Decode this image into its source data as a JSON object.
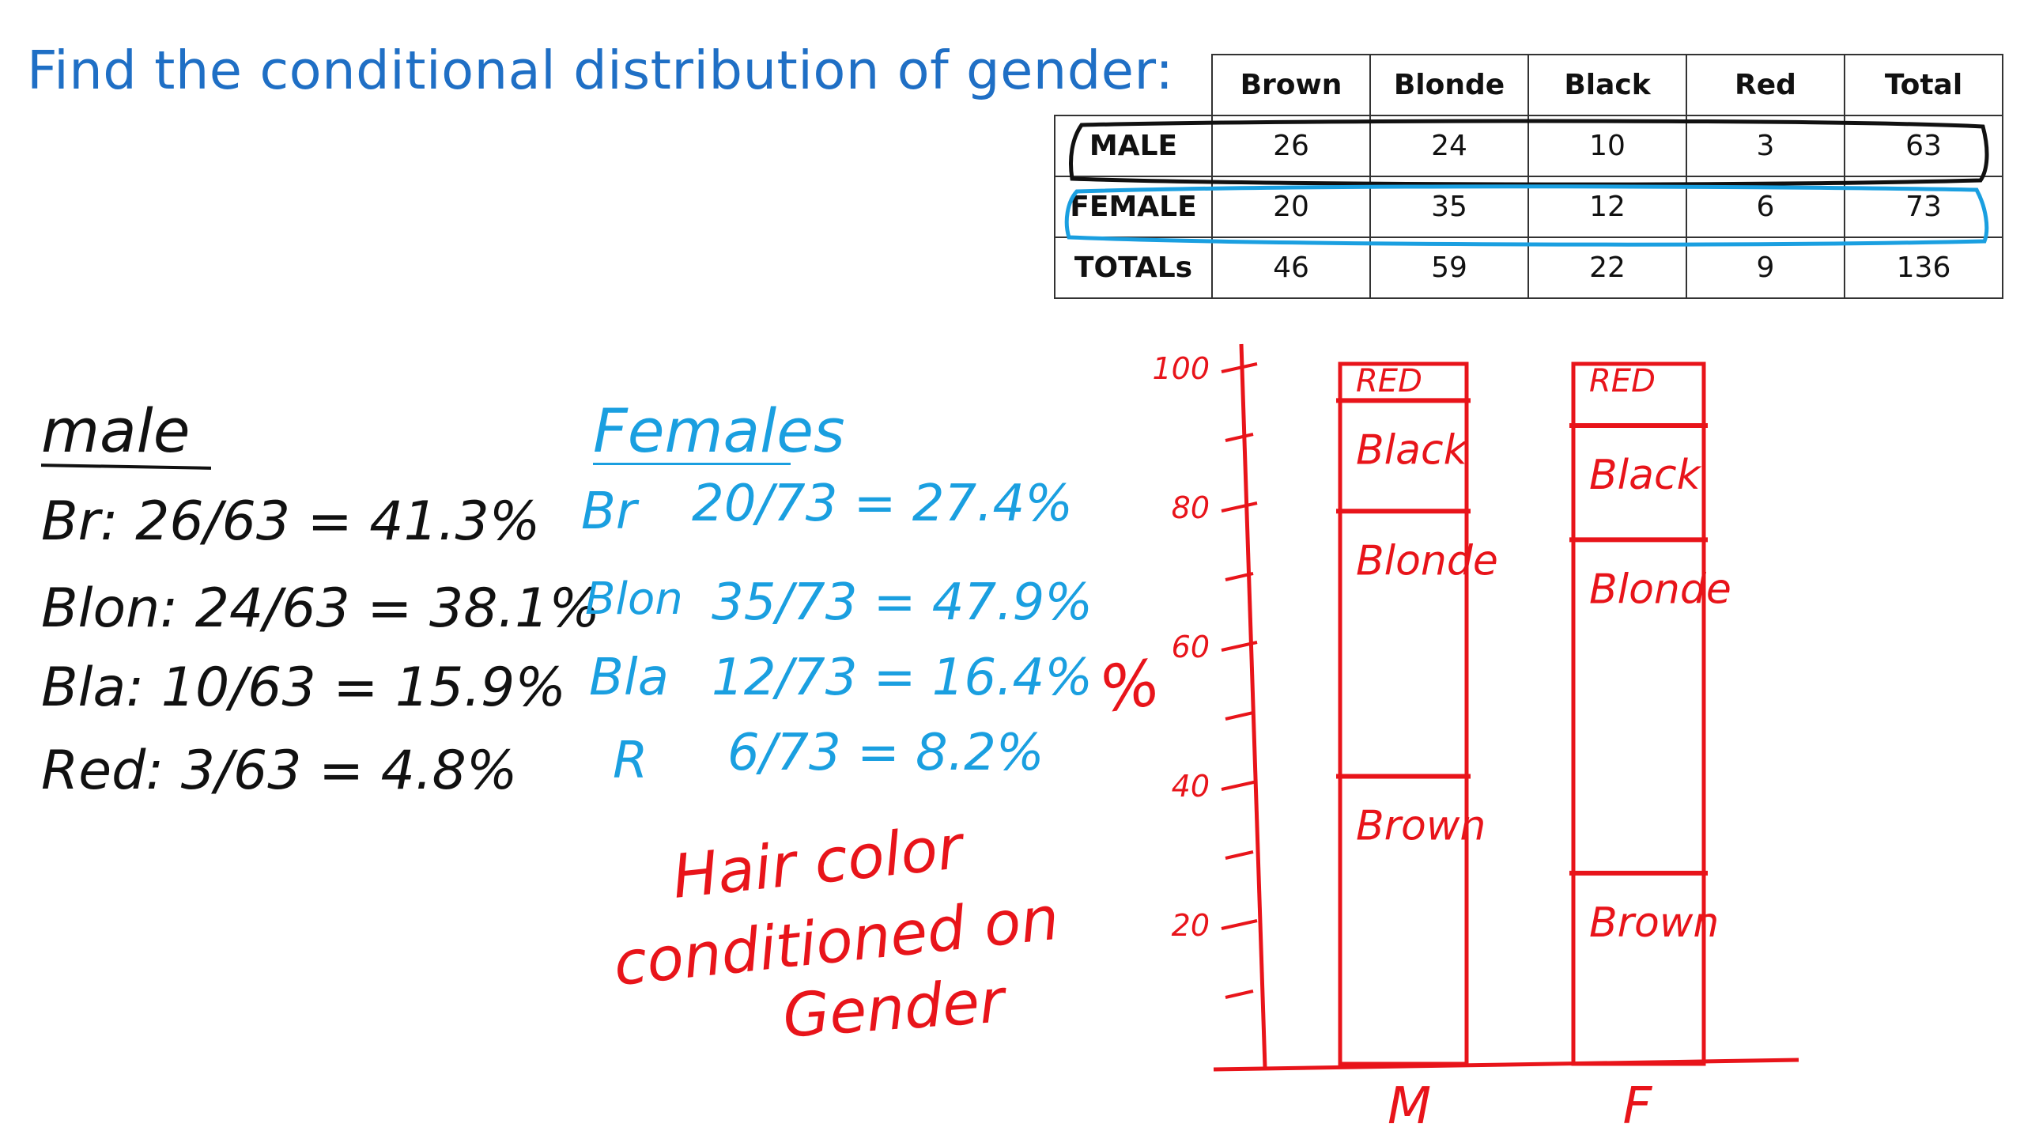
{
  "title": "Find the conditional distribution of gender:",
  "table": {
    "headers": [
      "",
      "Brown",
      "Blonde",
      "Black",
      "Red",
      "Total"
    ],
    "rows": [
      {
        "label": "MALE",
        "values": [
          "26",
          "24",
          "10",
          "3",
          "63"
        ]
      },
      {
        "label": "FEMALE",
        "values": [
          "20",
          "35",
          "12",
          "6",
          "73"
        ]
      },
      {
        "label": "TOTALs",
        "values": [
          "46",
          "59",
          "22",
          "9",
          "136"
        ]
      }
    ],
    "highlight_colors": {
      "male": "#111111",
      "female": "#1a9fe0"
    }
  },
  "male_notes": {
    "heading": "male",
    "lines": [
      "Br: 26/63 = 41.3%",
      "Blon: 24/63 = 38.1%",
      "Bla: 10/63 = 15.9%",
      "Red: 3/63 = 4.8%"
    ]
  },
  "female_notes": {
    "heading": "Females",
    "labels": [
      "Br",
      "Blon",
      "Bla",
      "R"
    ],
    "values": [
      "20/73 = 27.4%",
      "35/73 = 47.9%",
      "12/73 = 16.4%",
      "6/73 = 8.2%"
    ]
  },
  "hair_note": [
    "Hair color",
    "conditioned on",
    "Gender"
  ],
  "chart_data": {
    "type": "bar",
    "stacked": true,
    "ylabel": "%",
    "ylim": [
      0,
      100
    ],
    "yticks": [
      "100",
      "80",
      "60",
      "40",
      "20"
    ],
    "categories": [
      "M",
      "F"
    ],
    "series": [
      {
        "name": "Brown",
        "values": [
          41.3,
          27.4
        ]
      },
      {
        "name": "Blonde",
        "values": [
          38.1,
          47.9
        ]
      },
      {
        "name": "Black",
        "values": [
          15.9,
          16.4
        ]
      },
      {
        "name": "RED",
        "values": [
          4.8,
          8.2
        ]
      }
    ],
    "segment_labels": {
      "M": [
        "Brown",
        "Blonde",
        "Black",
        "RED"
      ],
      "F": [
        "Brown",
        "Blonde",
        "Black",
        "RED"
      ]
    },
    "color": "#e8141a"
  }
}
